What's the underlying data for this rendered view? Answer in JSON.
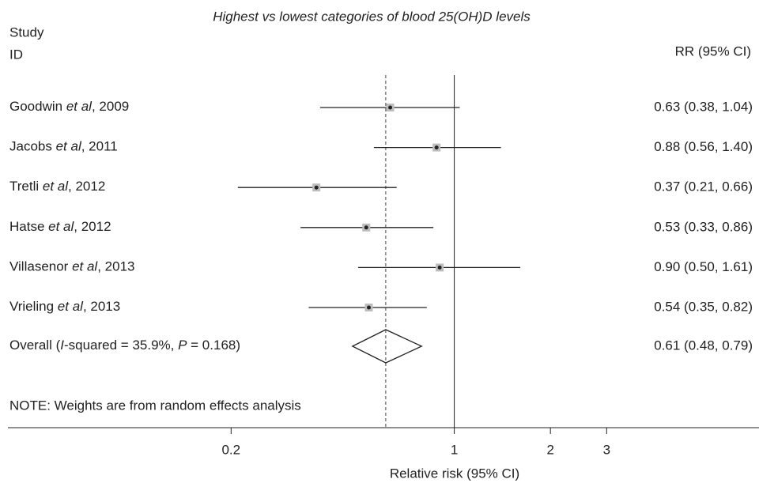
{
  "chart_data": {
    "type": "forest",
    "title": "Highest vs lowest categories of blood 25(OH)D levels",
    "column_headers": {
      "study": "Study",
      "id": "ID",
      "effect": "RR (95% CI)"
    },
    "studies": [
      {
        "label": [
          "Goodwin ",
          "et al",
          ", 2009"
        ],
        "rr": 0.63,
        "lower": 0.38,
        "upper": 1.04,
        "value_label": "0.63 (0.38, 1.04)"
      },
      {
        "label": [
          "Jacobs ",
          "et al",
          ", 2011"
        ],
        "rr": 0.88,
        "lower": 0.56,
        "upper": 1.4,
        "value_label": "0.88 (0.56, 1.40)"
      },
      {
        "label": [
          "Tretli ",
          "et al",
          ", 2012"
        ],
        "rr": 0.37,
        "lower": 0.21,
        "upper": 0.66,
        "value_label": "0.37 (0.21, 0.66)"
      },
      {
        "label": [
          "Hatse ",
          "et al",
          ", 2012"
        ],
        "rr": 0.53,
        "lower": 0.33,
        "upper": 0.86,
        "value_label": "0.53 (0.33, 0.86)"
      },
      {
        "label": [
          "Villasenor ",
          "et al",
          ", 2013"
        ],
        "rr": 0.9,
        "lower": 0.5,
        "upper": 1.61,
        "value_label": "0.90 (0.50, 1.61)"
      },
      {
        "label": [
          "Vrieling ",
          "et al",
          ", 2013"
        ],
        "rr": 0.54,
        "lower": 0.35,
        "upper": 0.82,
        "value_label": "0.54 (0.35, 0.82)"
      }
    ],
    "overall": {
      "label": [
        "Overall  (",
        "I",
        "-squared = 35.9%, ",
        "P",
        " = 0.168)"
      ],
      "rr": 0.61,
      "lower": 0.48,
      "upper": 0.79,
      "value_label": "0.61 (0.48, 0.79)"
    },
    "note": "NOTE: Weights are from random effects analysis",
    "xlabel": "Relative risk (95% CI)",
    "xscale": "log",
    "xlim": [
      0.04,
      9
    ],
    "xticks": [
      0.2,
      1,
      2,
      3
    ],
    "null_line": 1,
    "marker_color": "#bdbdbd"
  }
}
